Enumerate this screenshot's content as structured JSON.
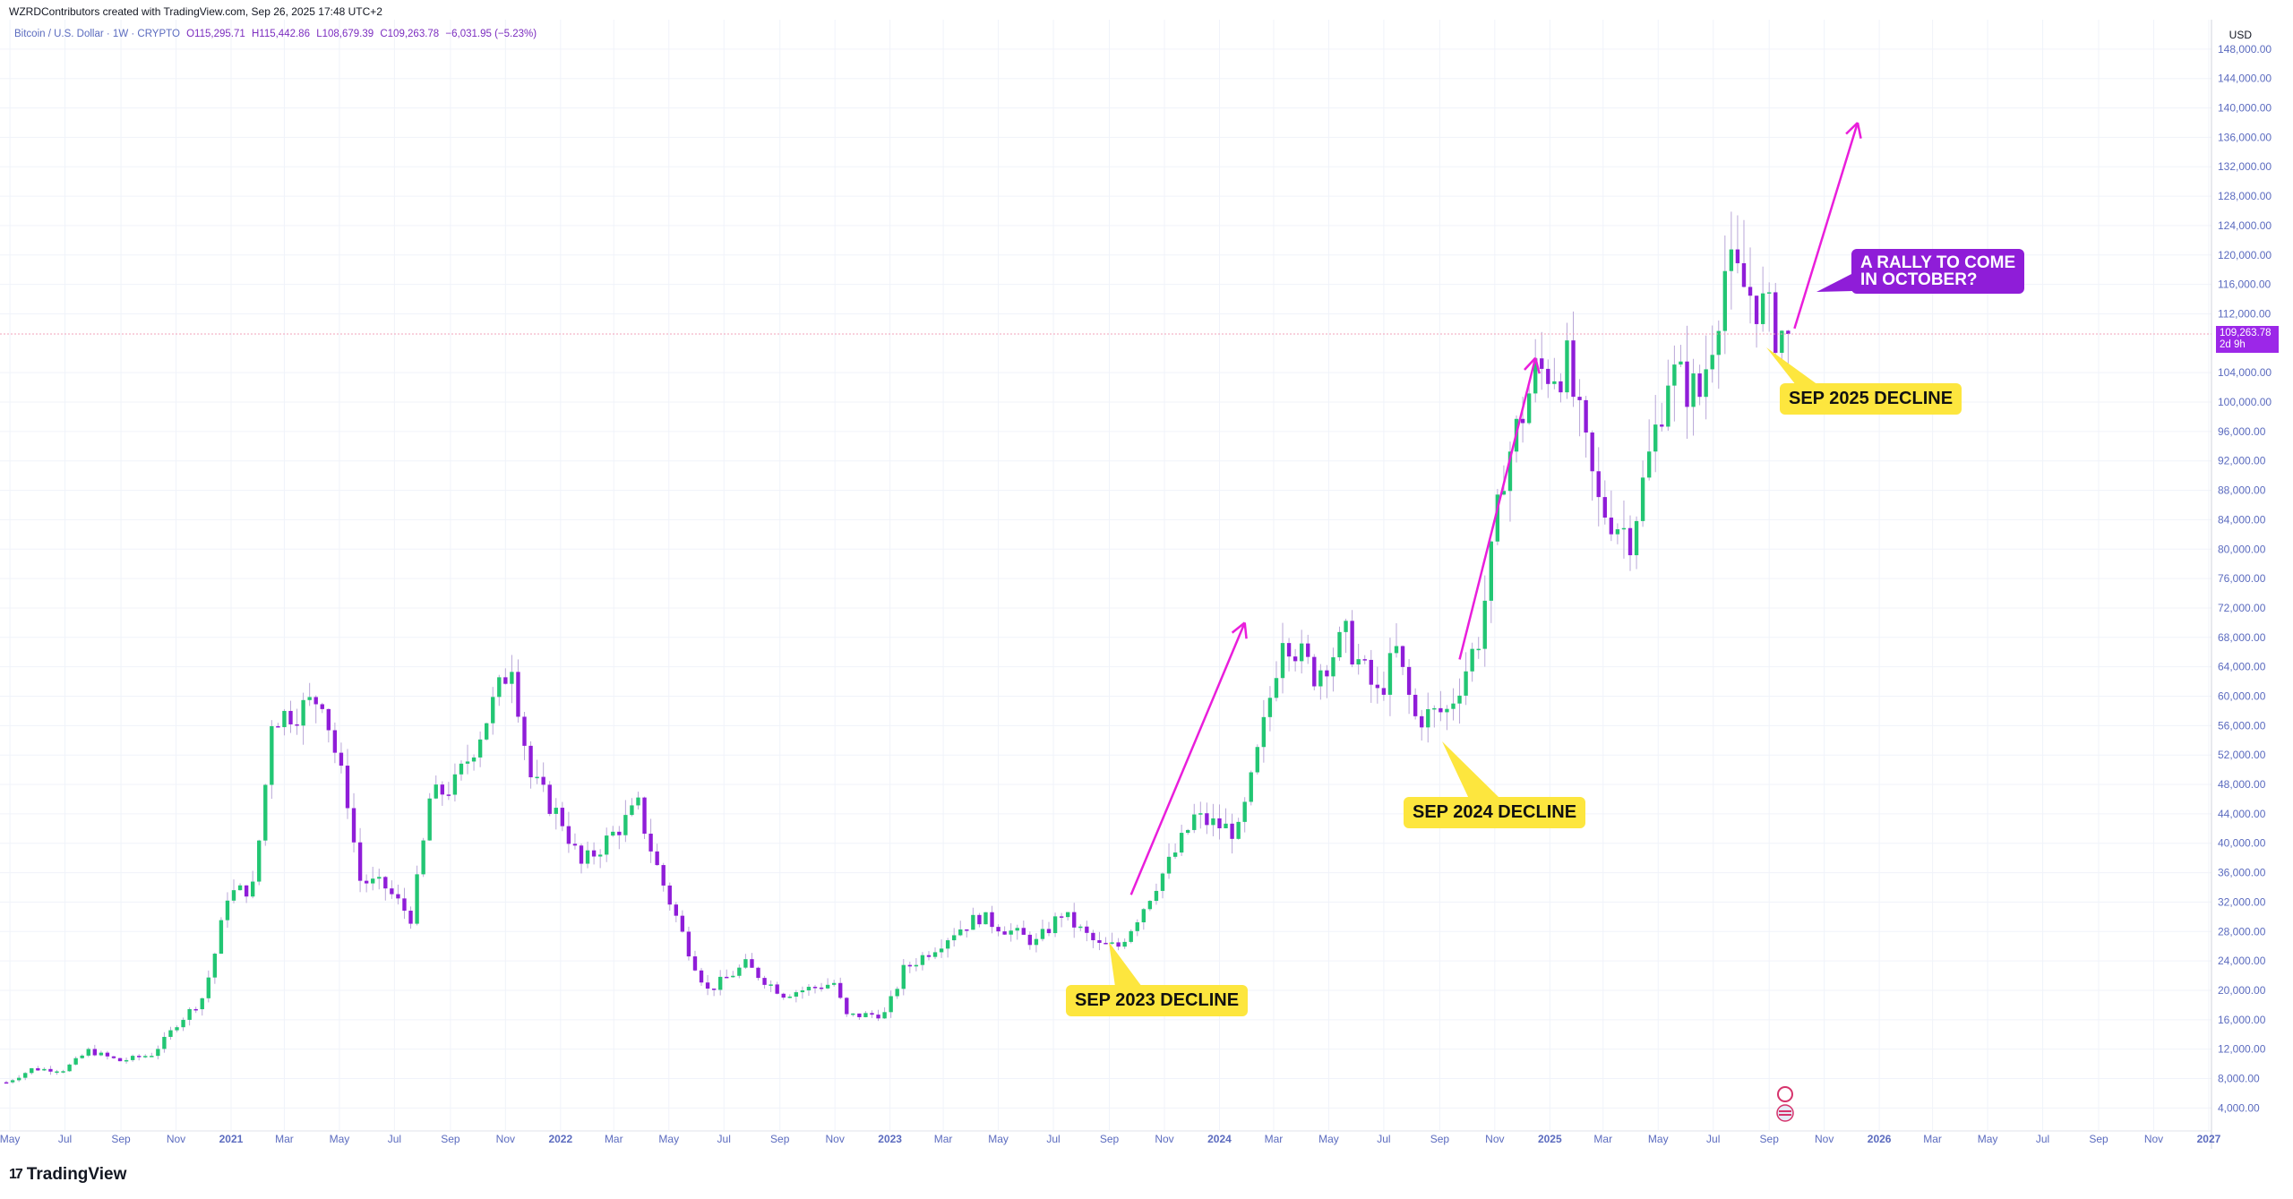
{
  "header": {
    "created_by": "WZRDContributors created with TradingView.com, Sep 26, 2025 17:48 UTC+2"
  },
  "legend": {
    "symbol": "Bitcoin / U.S. Dollar · 1W · CRYPTO",
    "open": "O115,295.71",
    "high": "H115,442.86",
    "low": "L108,679.39",
    "close": "C109,263.78",
    "change": "−6,031.95 (−5.23%)"
  },
  "price_axis": {
    "currency": "USD",
    "last_price": "109,263.78",
    "countdown": "2d 9h"
  },
  "callouts": {
    "sep2023": "SEP 2023 DECLINE",
    "sep2024": "SEP 2024 DECLINE",
    "sep2025": "SEP 2025 DECLINE",
    "rally_line1": "A RALLY TO COME",
    "rally_line2": "IN  OCTOBER?"
  },
  "brand": {
    "name": "TradingView",
    "logo_text": "17"
  },
  "colors": {
    "up": "#22c673",
    "down": "#8f1dd8",
    "arrow": "#e91edb",
    "callout_yellow": "#fde63e",
    "callout_purple": "#8f1dd8",
    "axis_text": "#5b6bbf",
    "grid": "#f0f3fa"
  },
  "chart_data": {
    "type": "candlestick",
    "timeframe": "1W",
    "y_ticks": [
      "4,000.00",
      "8,000.00",
      "12,000.00",
      "16,000.00",
      "20,000.00",
      "24,000.00",
      "28,000.00",
      "32,000.00",
      "36,000.00",
      "40,000.00",
      "44,000.00",
      "48,000.00",
      "52,000.00",
      "56,000.00",
      "60,000.00",
      "64,000.00",
      "68,000.00",
      "72,000.00",
      "76,000.00",
      "80,000.00",
      "84,000.00",
      "88,000.00",
      "92,000.00",
      "96,000.00",
      "100,000.00",
      "104,000.00",
      "112,000.00",
      "116,000.00",
      "120,000.00",
      "124,000.00",
      "128,000.00",
      "132,000.00",
      "136,000.00",
      "140,000.00",
      "144,000.00",
      "148,000.00"
    ],
    "x_ticks": [
      "May",
      "Jul",
      "Sep",
      "Nov",
      "2021",
      "Mar",
      "May",
      "Jul",
      "Sep",
      "Nov",
      "2022",
      "Mar",
      "May",
      "Jul",
      "Sep",
      "Nov",
      "2023",
      "Mar",
      "May",
      "Jul",
      "Sep",
      "Nov",
      "2024",
      "Mar",
      "May",
      "Jul",
      "Sep",
      "Nov",
      "2025",
      "Mar",
      "May",
      "Jul",
      "Sep",
      "Nov",
      "2026",
      "Mar",
      "May",
      "Jul",
      "Sep",
      "Nov",
      "2027"
    ],
    "x_range": [
      "2020-04-20",
      "2027-01-04"
    ],
    "y_range": [
      1000,
      152000
    ],
    "last_close": 109263.78,
    "series": [
      {
        "date": "2020-04-27",
        "close": 7500
      },
      {
        "date": "2020-05-25",
        "close": 9300
      },
      {
        "date": "2020-06-29",
        "close": 9200
      },
      {
        "date": "2020-07-27",
        "close": 11800
      },
      {
        "date": "2020-08-31",
        "close": 10400
      },
      {
        "date": "2020-10-05",
        "close": 11300
      },
      {
        "date": "2020-11-02",
        "close": 15500
      },
      {
        "date": "2020-11-30",
        "close": 19000
      },
      {
        "date": "2020-12-28",
        "close": 33000
      },
      {
        "date": "2021-01-25",
        "close": 34000
      },
      {
        "date": "2021-02-15",
        "close": 57000
      },
      {
        "date": "2021-03-15",
        "close": 58000
      },
      {
        "date": "2021-04-12",
        "close": 60000
      },
      {
        "date": "2021-05-10",
        "close": 46000
      },
      {
        "date": "2021-05-24",
        "close": 35000
      },
      {
        "date": "2021-06-21",
        "close": 34000
      },
      {
        "date": "2021-07-19",
        "close": 30000
      },
      {
        "date": "2021-08-09",
        "close": 46000
      },
      {
        "date": "2021-09-06",
        "close": 48000
      },
      {
        "date": "2021-10-11",
        "close": 57000
      },
      {
        "date": "2021-11-08",
        "close": 65000
      },
      {
        "date": "2021-11-29",
        "close": 49000
      },
      {
        "date": "2022-01-03",
        "close": 43000
      },
      {
        "date": "2022-01-24",
        "close": 37000
      },
      {
        "date": "2022-03-28",
        "close": 45000
      },
      {
        "date": "2022-05-09",
        "close": 30000
      },
      {
        "date": "2022-06-13",
        "close": 20000
      },
      {
        "date": "2022-07-25",
        "close": 23500
      },
      {
        "date": "2022-09-05",
        "close": 19500
      },
      {
        "date": "2022-10-31",
        "close": 21000
      },
      {
        "date": "2022-11-14",
        "close": 16500
      },
      {
        "date": "2022-12-26",
        "close": 16800
      },
      {
        "date": "2023-01-16",
        "close": 22800
      },
      {
        "date": "2023-03-13",
        "close": 28000
      },
      {
        "date": "2023-04-10",
        "close": 30000
      },
      {
        "date": "2023-06-12",
        "close": 26500
      },
      {
        "date": "2023-07-10",
        "close": 30500
      },
      {
        "date": "2023-08-21",
        "close": 26000
      },
      {
        "date": "2023-09-11",
        "close": 26000
      },
      {
        "date": "2023-10-23",
        "close": 34500
      },
      {
        "date": "2023-12-04",
        "close": 43500
      },
      {
        "date": "2024-01-22",
        "close": 41500
      },
      {
        "date": "2024-02-12",
        "close": 52000
      },
      {
        "date": "2024-03-11",
        "close": 69000
      },
      {
        "date": "2024-04-15",
        "close": 63000
      },
      {
        "date": "2024-05-20",
        "close": 68000
      },
      {
        "date": "2024-06-24",
        "close": 60000
      },
      {
        "date": "2024-07-15",
        "close": 66000
      },
      {
        "date": "2024-08-05",
        "close": 57000
      },
      {
        "date": "2024-09-09",
        "close": 58000
      },
      {
        "date": "2024-10-14",
        "close": 68000
      },
      {
        "date": "2024-11-11",
        "close": 91000
      },
      {
        "date": "2024-12-16",
        "close": 104000
      },
      {
        "date": "2025-01-20",
        "close": 105000
      },
      {
        "date": "2025-02-24",
        "close": 86000
      },
      {
        "date": "2025-03-31",
        "close": 82000
      },
      {
        "date": "2025-05-12",
        "close": 104000
      },
      {
        "date": "2025-06-16",
        "close": 101000
      },
      {
        "date": "2025-07-14",
        "close": 118000
      },
      {
        "date": "2025-08-18",
        "close": 114000
      },
      {
        "date": "2025-09-08",
        "close": 110000
      },
      {
        "date": "2025-09-22",
        "close": 109263.78
      }
    ],
    "arrows": [
      {
        "from": {
          "date": "2023-09-25",
          "value": 33000
        },
        "to": {
          "date": "2024-01-29",
          "value": 70000
        }
      },
      {
        "from": {
          "date": "2024-09-23",
          "value": 65000
        },
        "to": {
          "date": "2024-12-16",
          "value": 106000
        }
      },
      {
        "from": {
          "date": "2025-09-29",
          "value": 110000
        },
        "to": {
          "date": "2025-12-08",
          "value": 138000
        }
      }
    ]
  }
}
